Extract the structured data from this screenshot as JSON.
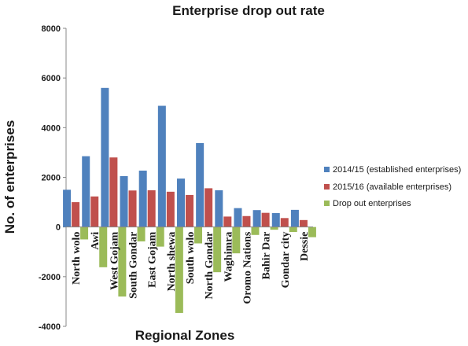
{
  "chart_data": {
    "type": "bar",
    "title": "Enterprise drop out rate",
    "xlabel": "Regional Zones",
    "ylabel": "No. of enterprises",
    "ylim": [
      -4000,
      8000
    ],
    "yticks": [
      -4000,
      -2000,
      0,
      2000,
      4000,
      6000,
      8000
    ],
    "grid": false,
    "legend_position": "right",
    "categories": [
      "North wolo",
      "Awi",
      "West Gojam",
      "South Gondar",
      "East Gojam",
      "North shewa",
      "South wolo",
      "North Gondar",
      "Waghimra",
      "Oromo Nations",
      "Bahir Dar",
      "Gondar city",
      "Dessie"
    ],
    "series": [
      {
        "name": "2014/15 (established enterprises)",
        "color": "#4F81BD",
        "values": [
          1500,
          2850,
          5600,
          2050,
          2270,
          4880,
          1950,
          3380,
          1480,
          760,
          680,
          560,
          690
        ]
      },
      {
        "name": "2015/16 (available enterprises)",
        "color": "#C0504D",
        "values": [
          1000,
          1230,
          2800,
          1470,
          1480,
          1420,
          1290,
          1560,
          420,
          440,
          570,
          360,
          280
        ]
      },
      {
        "name": "Drop out enterprises",
        "color": "#9BBB59",
        "values": [
          -500,
          -1620,
          -2800,
          -580,
          -790,
          -3460,
          -660,
          -1820,
          -1060,
          -320,
          -110,
          -200,
          -410
        ]
      }
    ]
  }
}
